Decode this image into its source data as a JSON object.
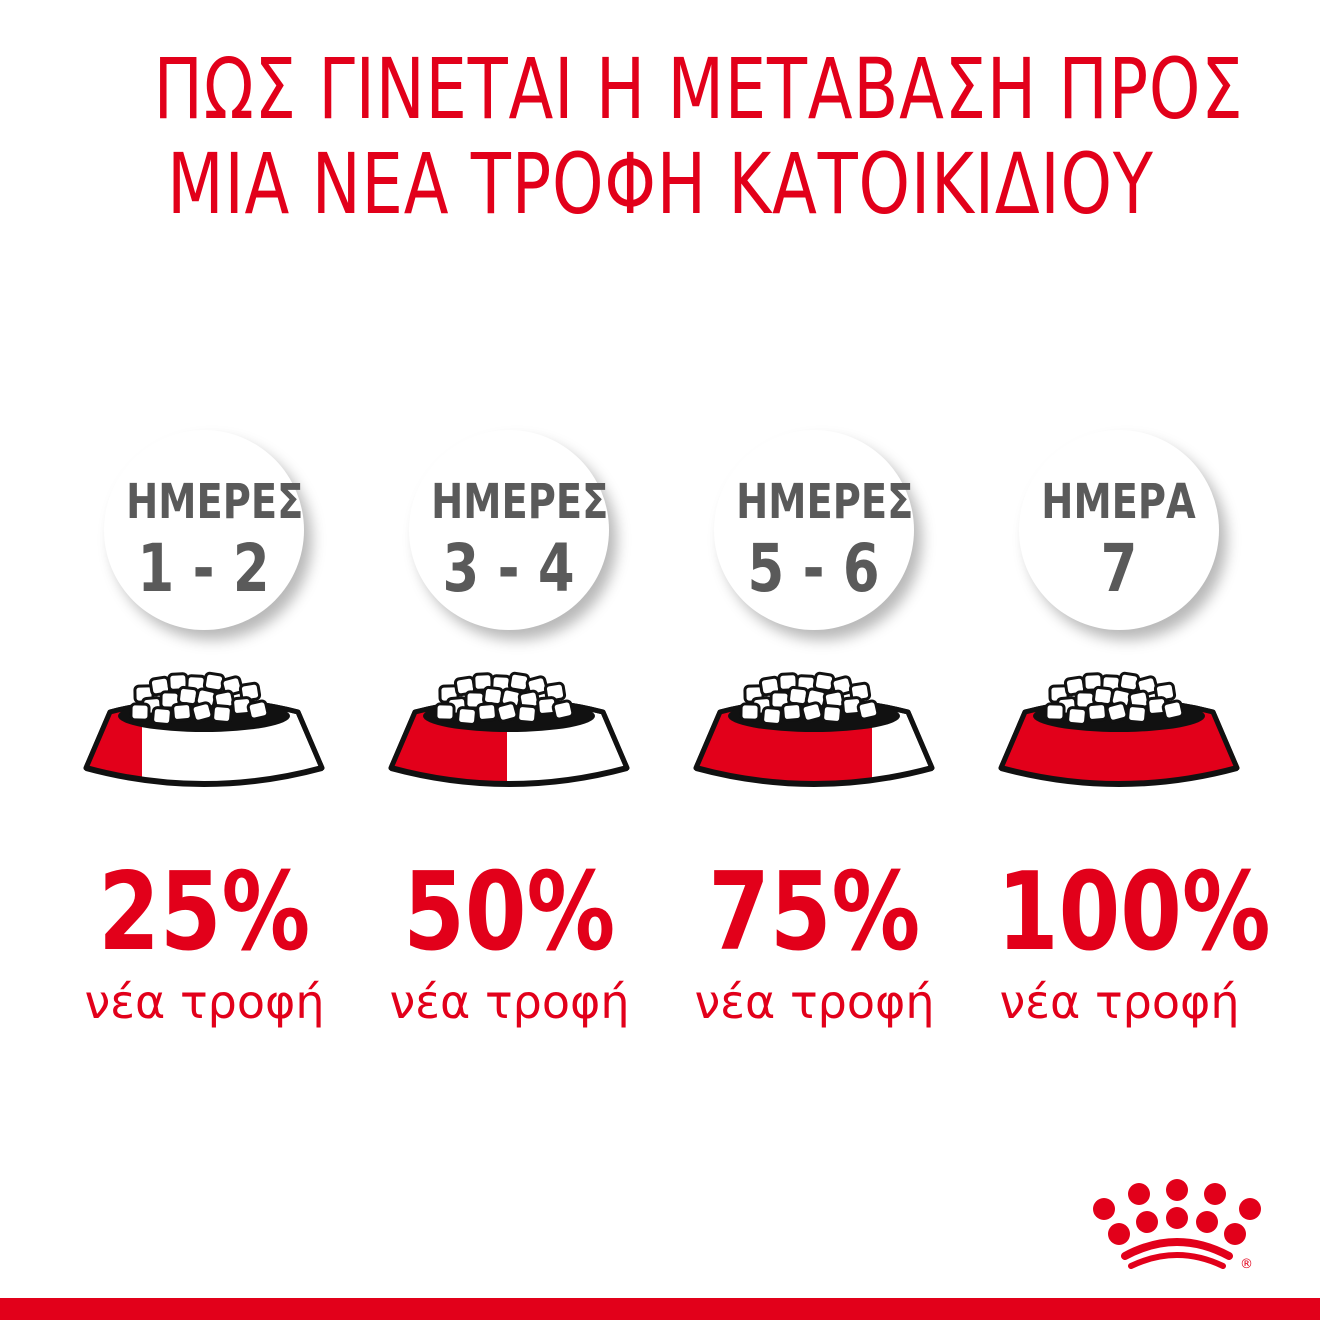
{
  "title": {
    "line1": "ΠΩΣ ΓΙΝΕΤΑΙ Η ΜΕΤΑΒΑΣΗ ΠΡΟΣ",
    "line2": "ΜΙΑ ΝΕΑ ΤΡΟΦΗ ΚΑΤΟΙΚΙΔΙΟΥ"
  },
  "colors": {
    "brand_red": "#e2001a",
    "label_gray": "#5a5a5a"
  },
  "steps": [
    {
      "label": "ΗΜΕΡΕΣ",
      "days": "1 - 2",
      "percent": "25%",
      "new_food_fraction": 0.25,
      "caption": "νέα τροφή"
    },
    {
      "label": "ΗΜΕΡΕΣ",
      "days": "3 - 4",
      "percent": "50%",
      "new_food_fraction": 0.5,
      "caption": "νέα τροφή"
    },
    {
      "label": "ΗΜΕΡΕΣ",
      "days": "5 - 6",
      "percent": "75%",
      "new_food_fraction": 0.75,
      "caption": "νέα τροφή"
    },
    {
      "label": "ΗΜΕΡΑ",
      "days": "7",
      "percent": "100%",
      "new_food_fraction": 1.0,
      "caption": "νέα τροφή"
    }
  ],
  "logo": {
    "name": "crown-logo",
    "mark": "®"
  }
}
